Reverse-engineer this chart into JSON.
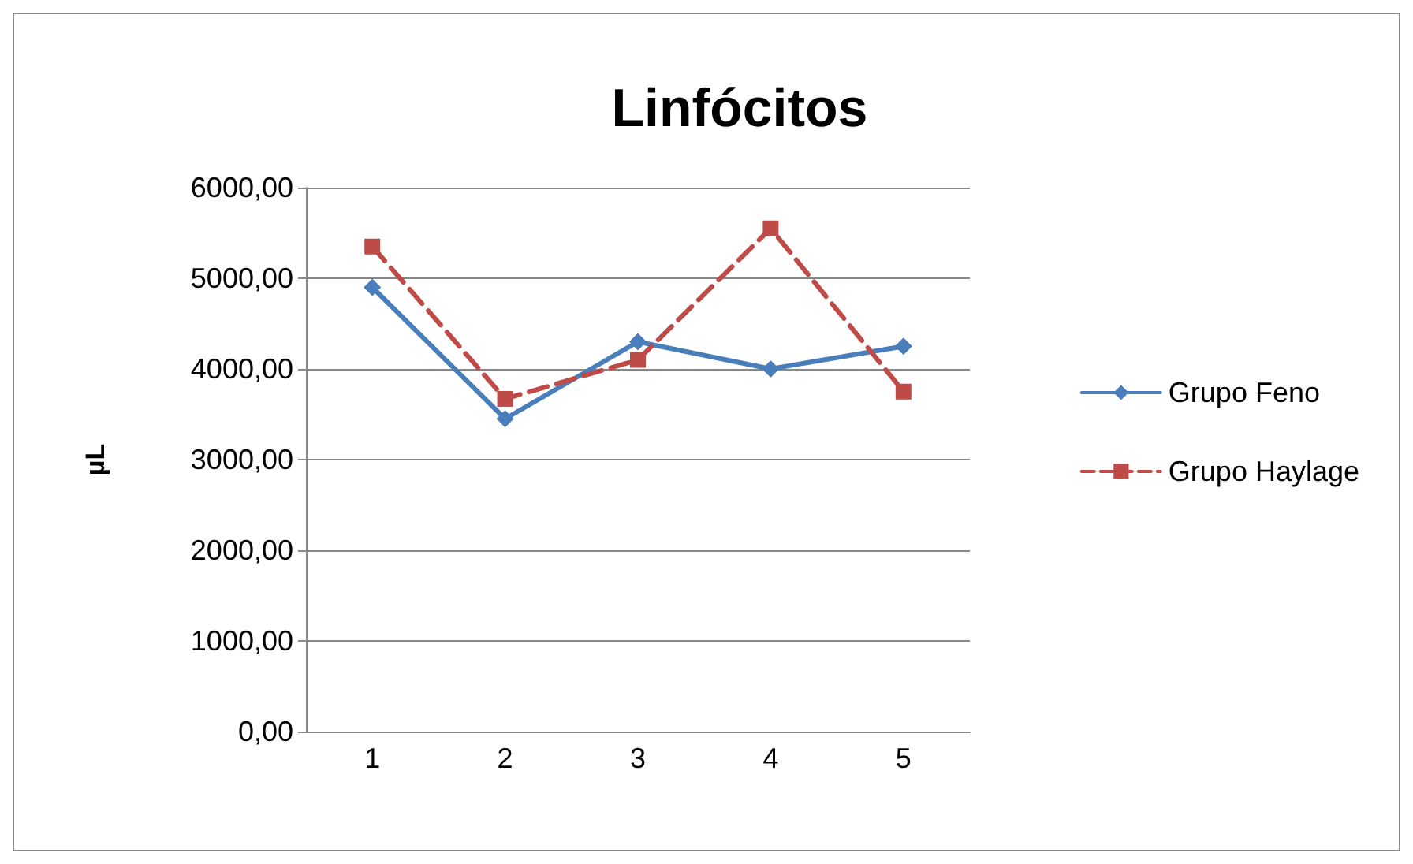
{
  "chart_data": {
    "type": "line",
    "title": "Linfócitos",
    "ylabel": "µL",
    "categories": [
      "1",
      "2",
      "3",
      "4",
      "5"
    ],
    "series": [
      {
        "name": "Grupo Feno",
        "color": "#4a7ebb",
        "marker": "diamond",
        "line_style": "solid",
        "values": [
          4900,
          3450,
          4300,
          4000,
          4250
        ]
      },
      {
        "name": "Grupo Haylage",
        "color": "#be4b48",
        "marker": "square",
        "line_style": "dashed",
        "values": [
          5350,
          3670,
          4100,
          5550,
          3750
        ]
      }
    ],
    "ylim": [
      0,
      6000
    ],
    "yticks": [
      {
        "value": 0,
        "label": "0,00"
      },
      {
        "value": 1000,
        "label": "1000,00"
      },
      {
        "value": 2000,
        "label": "2000,00"
      },
      {
        "value": 3000,
        "label": "3000,00"
      },
      {
        "value": 4000,
        "label": "4000,00"
      },
      {
        "value": 5000,
        "label": "5000,00"
      },
      {
        "value": 6000,
        "label": "6000,00"
      }
    ],
    "grid": "y",
    "legend": "right"
  }
}
